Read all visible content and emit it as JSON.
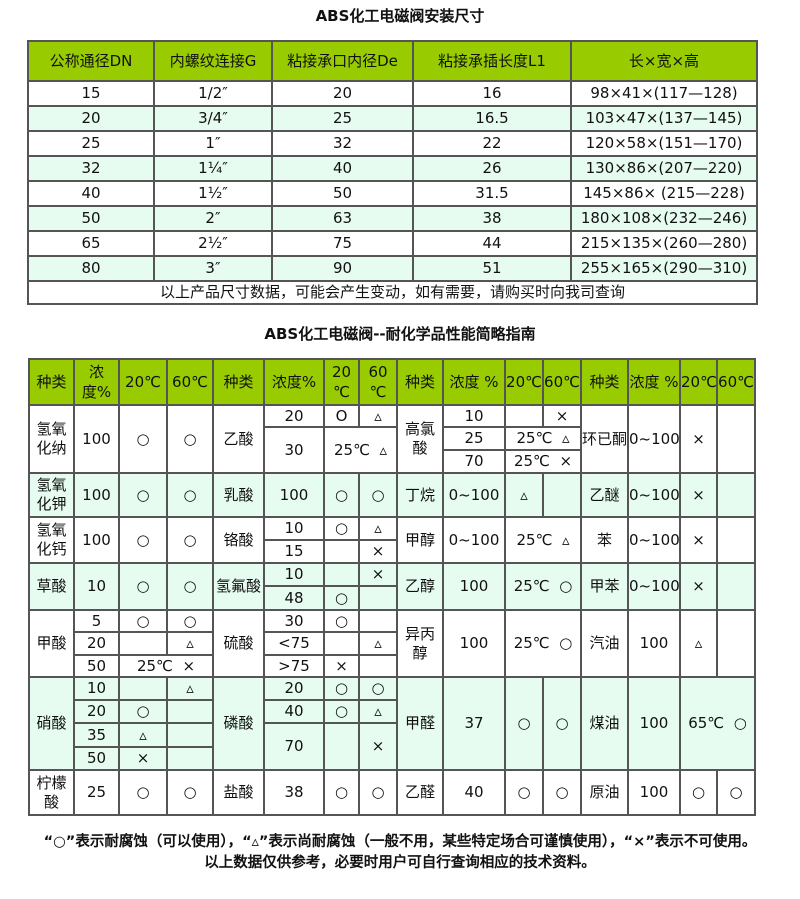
{
  "size_table": {
    "title": "ABS化工电磁阀安装尺寸",
    "headers": [
      "公称通径DN",
      "内螺纹连接G",
      "粘接承口内径De",
      "粘接承插长度L1",
      "长×宽×高"
    ],
    "rows": [
      [
        "15",
        "1/2″",
        "20",
        "16",
        "98×41×(117—128)"
      ],
      [
        "20",
        "3/4″",
        "25",
        "16.5",
        "103×47×(137—145)"
      ],
      [
        "25",
        "1″",
        "32",
        "22",
        "120×58×(151—170)"
      ],
      [
        "32",
        "1¼″",
        "40",
        "26",
        "130×86×(207—220)"
      ],
      [
        "40",
        "1½″",
        "50",
        "31.5",
        "145×86× (215—228)"
      ],
      [
        "50",
        "2″",
        "63",
        "38",
        "180×108×(232—246)"
      ],
      [
        "65",
        "2½″",
        "75",
        "44",
        "215×135×(260—280)"
      ],
      [
        "80",
        "3″",
        "90",
        "51",
        "255×165×(290—310)"
      ]
    ],
    "footer": "以上产品尺寸数据，可能会产生变动，如有需要，请购买时向我司查询"
  },
  "chemical_guide": {
    "title": "ABS化工电磁阀--耐化学品性能简略指南",
    "headers": [
      "种类",
      "浓度%",
      "20℃",
      "60℃",
      "种类",
      "浓度%",
      "20 ℃",
      "60 ℃",
      "种类",
      "浓度 %",
      "20℃",
      "60℃",
      "种类",
      "浓度 %",
      "20℃",
      "60℃"
    ],
    "rows": [
      [
        "氢氧化纳",
        "100",
        "○",
        "○",
        "乙酸",
        "20",
        "O",
        "▵",
        "高氯酸",
        "10",
        "",
        "×",
        "环已酮",
        "0~100",
        "×",
        ""
      ],
      [
        "30",
        "25℃  ▵",
        "25",
        "25℃  ▵"
      ],
      [
        "70",
        "25℃  ×"
      ],
      [
        "氢氧化钾",
        "100",
        "○",
        "○",
        "乳酸",
        "100",
        "○",
        "○",
        "丁烷",
        "0~100",
        "▵",
        "",
        "乙醚",
        "0~100",
        "×",
        ""
      ],
      [
        "氢氧化钙",
        "100",
        "○",
        "○",
        "铬酸",
        "10",
        "○",
        "▵",
        "甲醇",
        "0~100",
        "25℃  ▵",
        "苯",
        "0~100",
        "×",
        ""
      ],
      [
        "15",
        "",
        "×"
      ],
      [
        "草酸",
        "10",
        "○",
        "○",
        "氢氟酸",
        "10",
        "",
        "×",
        "乙醇",
        "100",
        "25℃  ○",
        "甲苯",
        "0~100",
        "×",
        ""
      ],
      [
        "48",
        "○",
        ""
      ],
      [
        "甲酸",
        "5",
        "○",
        "○",
        "硫酸",
        "30",
        "○",
        "",
        "异丙醇",
        "100",
        "25℃  ○",
        "汽油",
        "100",
        "▵",
        ""
      ],
      [
        "20",
        "",
        "▵",
        "<75",
        "",
        "▵"
      ],
      [
        "50",
        "25℃  ×",
        ">75",
        "×",
        ""
      ],
      [
        "硝酸",
        "10",
        "",
        "▵",
        "磷酸",
        "20",
        "○",
        "○",
        "甲醛",
        "37",
        "○",
        "○",
        "煤油",
        "100",
        "65℃  ○"
      ],
      [
        "20",
        "○",
        "",
        "40",
        "○",
        "▵"
      ],
      [
        "35",
        "▵",
        "",
        "70",
        "",
        "×"
      ],
      [
        "50",
        "×",
        ""
      ],
      [
        "柠檬酸",
        "25",
        "○",
        "○",
        "盐酸",
        "38",
        "○",
        "○",
        "乙醛",
        "40",
        "○",
        "○",
        "原油",
        "100",
        "○",
        "○"
      ]
    ]
  },
  "notes": {
    "legend": "“○”表示耐腐蚀（可以使用），“▵”表示尚耐腐蚀（一般不用，某些特定场合可谨慎使用），“×”表示不可使用。",
    "disclaimer": "以上数据仅供参考，必要时用户可自行查询相应的技术资料。"
  },
  "colors": {
    "header_bg": "#99cc00",
    "alt_row_bg": "#e6fcf0",
    "border": "#555555"
  }
}
